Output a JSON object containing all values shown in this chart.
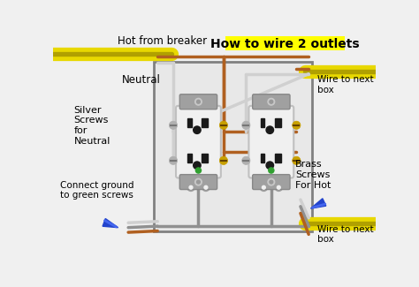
{
  "bg_color": "#f0f0f0",
  "title": "How to wire 2 outlets",
  "title_bg": "#ffff00",
  "title_color": "#000000",
  "title_fontsize": 10,
  "label_color": "#000000",
  "labels": {
    "hot_from_breaker": "Hot from breaker",
    "neutral": "Neutral",
    "silver_screws": "Silver\nScrews\nfor\nNeutral",
    "connect_ground": "Connect ground\nto green screws",
    "brass_screws": "Brass\nScrews\nFor Hot",
    "wire_next_top": "Wire to next\nbox",
    "wire_next_bot": "Wire to next\nbox"
  },
  "wire_hot_color": "#b06020",
  "wire_neutral_color": "#d0d0d0",
  "wire_ground_color": "#909090",
  "wire_cable_color": "#e8d800",
  "wire_cable_dark": "#b0a000",
  "screw_silver": "#b0b0b0",
  "screw_brass": "#c8a000",
  "screw_green": "#30a030",
  "outlet_body": "#f0f0f0",
  "outlet_border": "#c0c0c0",
  "outlet_ear_color": "#a0a0a0",
  "box_border": "#808080",
  "box_fill": "#e8e8e8",
  "blue_nut": "#2244cc",
  "slot_color": "#1a1a1a"
}
